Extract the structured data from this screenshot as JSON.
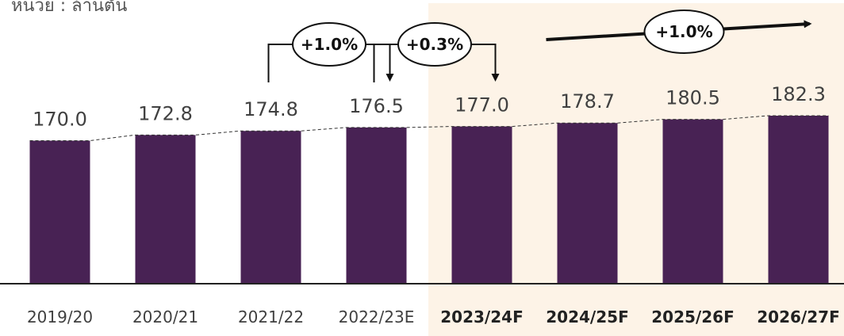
{
  "unit_label": "หน่วย : ล้านตัน",
  "colors": {
    "bar": "#482254",
    "forecast_bg": "#fdf3e7",
    "axis": "#222222",
    "label": "#404040",
    "annotation": "#111111"
  },
  "chart_data": {
    "type": "bar",
    "categories": [
      "2019/20",
      "2020/21",
      "2021/22",
      "2022/23E",
      "2023/24F",
      "2024/25F",
      "2025/26F",
      "2026/27F"
    ],
    "values": [
      170.0,
      172.8,
      174.8,
      176.5,
      177.0,
      178.7,
      180.5,
      182.3
    ],
    "value_labels": [
      "170.0",
      "172.8",
      "174.8",
      "176.5",
      "177.0",
      "178.7",
      "180.5",
      "182.3"
    ],
    "forecast_start_index": 4,
    "bold_categories": [
      false,
      false,
      false,
      false,
      true,
      true,
      true,
      true
    ],
    "trend_line": "dashed",
    "ylim": [
      100,
      185
    ],
    "annotations": [
      {
        "text": "+1.0%",
        "from_index": 2,
        "to_index": 3,
        "style": "elbow-arrow"
      },
      {
        "text": "+0.3%",
        "from_index": 3,
        "to_index": 4,
        "style": "elbow-arrow"
      },
      {
        "text": "+1.0%",
        "from_index": 5,
        "to_index": 7,
        "style": "trend-arrow"
      }
    ]
  }
}
